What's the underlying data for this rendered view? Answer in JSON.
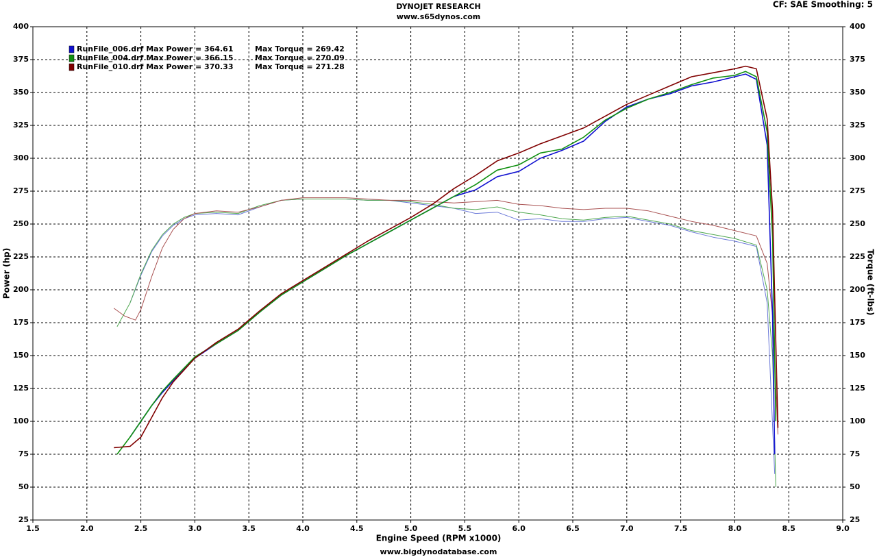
{
  "chart_data": {
    "type": "line",
    "title": "DYNOJET RESEARCH",
    "subtitle": "www.s65dynos.com",
    "corner_note": "CF: SAE  Smoothing: 5",
    "xlabel": "Engine Speed (RPM x1000)",
    "ylabel": "Power (hp)",
    "y2label": "Torque (ft-lbs)",
    "footer": "www.bigdynodatabase.com",
    "grid": true,
    "xlim": [
      1.5,
      9.0
    ],
    "xticks": [
      1.5,
      {
        "value": 2,
        "label": "2.0"
      },
      2.5,
      {
        "value": 3,
        "label": "3.0"
      },
      3.5,
      {
        "value": 4,
        "label": "4.0"
      },
      4.5,
      {
        "value": 5,
        "label": "5.0"
      },
      5.5,
      {
        "value": 6,
        "label": "6.0"
      },
      6.5,
      {
        "value": 7,
        "label": "7.0"
      },
      7.5,
      {
        "value": 8,
        "label": "8.0"
      },
      8.5,
      {
        "value": 9,
        "label": "9.0"
      }
    ],
    "ylim": [
      25,
      400
    ],
    "yticks": [
      25,
      50,
      75,
      100,
      125,
      150,
      175,
      200,
      225,
      250,
      275,
      300,
      325,
      350,
      375,
      400
    ],
    "y2lim": [
      25,
      400
    ],
    "y2ticks": [
      25,
      50,
      75,
      100,
      125,
      150,
      175,
      200,
      225,
      250,
      275,
      300,
      325,
      350,
      375,
      400
    ],
    "legend": [
      {
        "color": "#1010d0",
        "power_label": "RunFile_006.drf Max Power = 364.61",
        "torque_label": "Max Torque = 269.42"
      },
      {
        "color": "#109010",
        "power_label": "RunFile_004.drf Max Power = 366.15",
        "torque_label": "Max Torque = 270.09"
      },
      {
        "color": "#800000",
        "power_label": "RunFile_010.drf Max Power = 370.33",
        "torque_label": "Max Torque = 271.28"
      }
    ],
    "series": [
      {
        "color": "#6a78d8",
        "axis": "y2",
        "x": [
          2.4,
          2.5,
          2.6,
          2.7,
          2.8,
          2.9,
          3.0,
          3.2,
          3.4,
          3.6,
          3.8,
          4.0,
          4.2,
          4.4,
          4.6,
          4.8,
          5.0,
          5.2,
          5.4,
          5.6,
          5.8,
          6.0,
          6.2,
          6.4,
          6.6,
          6.8,
          7.0,
          7.2,
          7.4,
          7.6,
          7.8,
          8.0,
          8.2,
          8.3,
          8.37
        ],
        "values": [
          190,
          211,
          229,
          241,
          249,
          254,
          257,
          258,
          257,
          263,
          268,
          269,
          269,
          269,
          268,
          268,
          266,
          264,
          262,
          258,
          259,
          253,
          254,
          252,
          252,
          254,
          255,
          252,
          249,
          244,
          240,
          237,
          233,
          190,
          60
        ]
      },
      {
        "color": "#50a850",
        "axis": "y2",
        "x": [
          2.28,
          2.4,
          2.5,
          2.6,
          2.7,
          2.8,
          2.9,
          3.0,
          3.2,
          3.4,
          3.6,
          3.8,
          4.0,
          4.2,
          4.4,
          4.6,
          4.8,
          5.0,
          5.2,
          5.4,
          5.6,
          5.8,
          6.0,
          6.2,
          6.4,
          6.6,
          6.8,
          7.0,
          7.2,
          7.4,
          7.6,
          7.8,
          8.0,
          8.2,
          8.3,
          8.35,
          8.38
        ],
        "values": [
          172,
          190,
          212,
          230,
          242,
          250,
          255,
          258,
          259,
          258,
          264,
          268,
          269,
          269,
          269,
          268,
          268,
          267,
          265,
          262,
          261,
          263,
          259,
          257,
          254,
          253,
          255,
          256,
          253,
          250,
          245,
          242,
          239,
          234,
          200,
          150,
          50
        ]
      },
      {
        "color": "#a85050",
        "axis": "y2",
        "x": [
          2.25,
          2.35,
          2.45,
          2.5,
          2.6,
          2.7,
          2.8,
          2.9,
          3.0,
          3.2,
          3.4,
          3.6,
          3.8,
          4.0,
          4.2,
          4.4,
          4.6,
          4.8,
          5.0,
          5.2,
          5.4,
          5.6,
          5.8,
          6.0,
          6.2,
          6.4,
          6.6,
          6.8,
          7.0,
          7.2,
          7.4,
          7.6,
          7.8,
          8.0,
          8.2,
          8.3,
          8.35,
          8.4
        ],
        "values": [
          186,
          180,
          177,
          185,
          210,
          232,
          246,
          254,
          258,
          260,
          259,
          263,
          268,
          270,
          270,
          270,
          269,
          268,
          268,
          267,
          266,
          267,
          268,
          265,
          264,
          262,
          261,
          262,
          262,
          260,
          256,
          252,
          249,
          245,
          241,
          220,
          180,
          90
        ]
      },
      {
        "color": "#1010d0",
        "x": [
          2.4,
          2.5,
          2.6,
          2.7,
          2.8,
          3.0,
          3.2,
          3.4,
          3.6,
          3.8,
          4.0,
          4.2,
          4.4,
          4.6,
          4.8,
          5.0,
          5.2,
          5.4,
          5.6,
          5.8,
          6.0,
          6.2,
          6.4,
          6.6,
          6.8,
          7.0,
          7.2,
          7.4,
          7.6,
          7.8,
          8.0,
          8.1,
          8.15,
          8.2,
          8.3,
          8.35,
          8.37
        ],
        "values": [
          88,
          100,
          112,
          122,
          131,
          148,
          159,
          169,
          183,
          196,
          206,
          216,
          226,
          235,
          244,
          253,
          262,
          271,
          276,
          286,
          290,
          300,
          306,
          313,
          328,
          339,
          345,
          349,
          355,
          358,
          362,
          364,
          362,
          360,
          310,
          180,
          75
        ]
      },
      {
        "color": "#109010",
        "x": [
          2.28,
          2.4,
          2.5,
          2.6,
          2.7,
          2.8,
          3.0,
          3.2,
          3.4,
          3.6,
          3.8,
          4.0,
          4.2,
          4.4,
          4.6,
          4.8,
          5.0,
          5.2,
          5.4,
          5.6,
          5.8,
          6.0,
          6.2,
          6.4,
          6.6,
          6.8,
          7.0,
          7.2,
          7.4,
          7.6,
          7.8,
          8.0,
          8.1,
          8.2,
          8.3,
          8.35,
          8.38
        ],
        "values": [
          75,
          88,
          100,
          112,
          123,
          132,
          149,
          159,
          169,
          183,
          196,
          206,
          216,
          226,
          235,
          244,
          253,
          262,
          271,
          280,
          291,
          295,
          304,
          307,
          316,
          329,
          338,
          345,
          350,
          356,
          361,
          363,
          366,
          362,
          320,
          240,
          100
        ]
      },
      {
        "color": "#800000",
        "x": [
          2.25,
          2.4,
          2.5,
          2.6,
          2.7,
          2.8,
          3.0,
          3.2,
          3.4,
          3.6,
          3.8,
          4.0,
          4.2,
          4.4,
          4.6,
          4.8,
          5.0,
          5.2,
          5.4,
          5.6,
          5.8,
          6.0,
          6.2,
          6.4,
          6.6,
          6.8,
          7.0,
          7.2,
          7.4,
          7.6,
          7.8,
          8.0,
          8.1,
          8.2,
          8.3,
          8.35,
          8.4
        ],
        "values": [
          80,
          81,
          88,
          103,
          118,
          130,
          148,
          160,
          170,
          184,
          197,
          207,
          217,
          227,
          237,
          246,
          255,
          265,
          277,
          287,
          298,
          304,
          311,
          317,
          323,
          332,
          341,
          348,
          355,
          362,
          365,
          368,
          370,
          368,
          330,
          260,
          95
        ]
      }
    ]
  }
}
